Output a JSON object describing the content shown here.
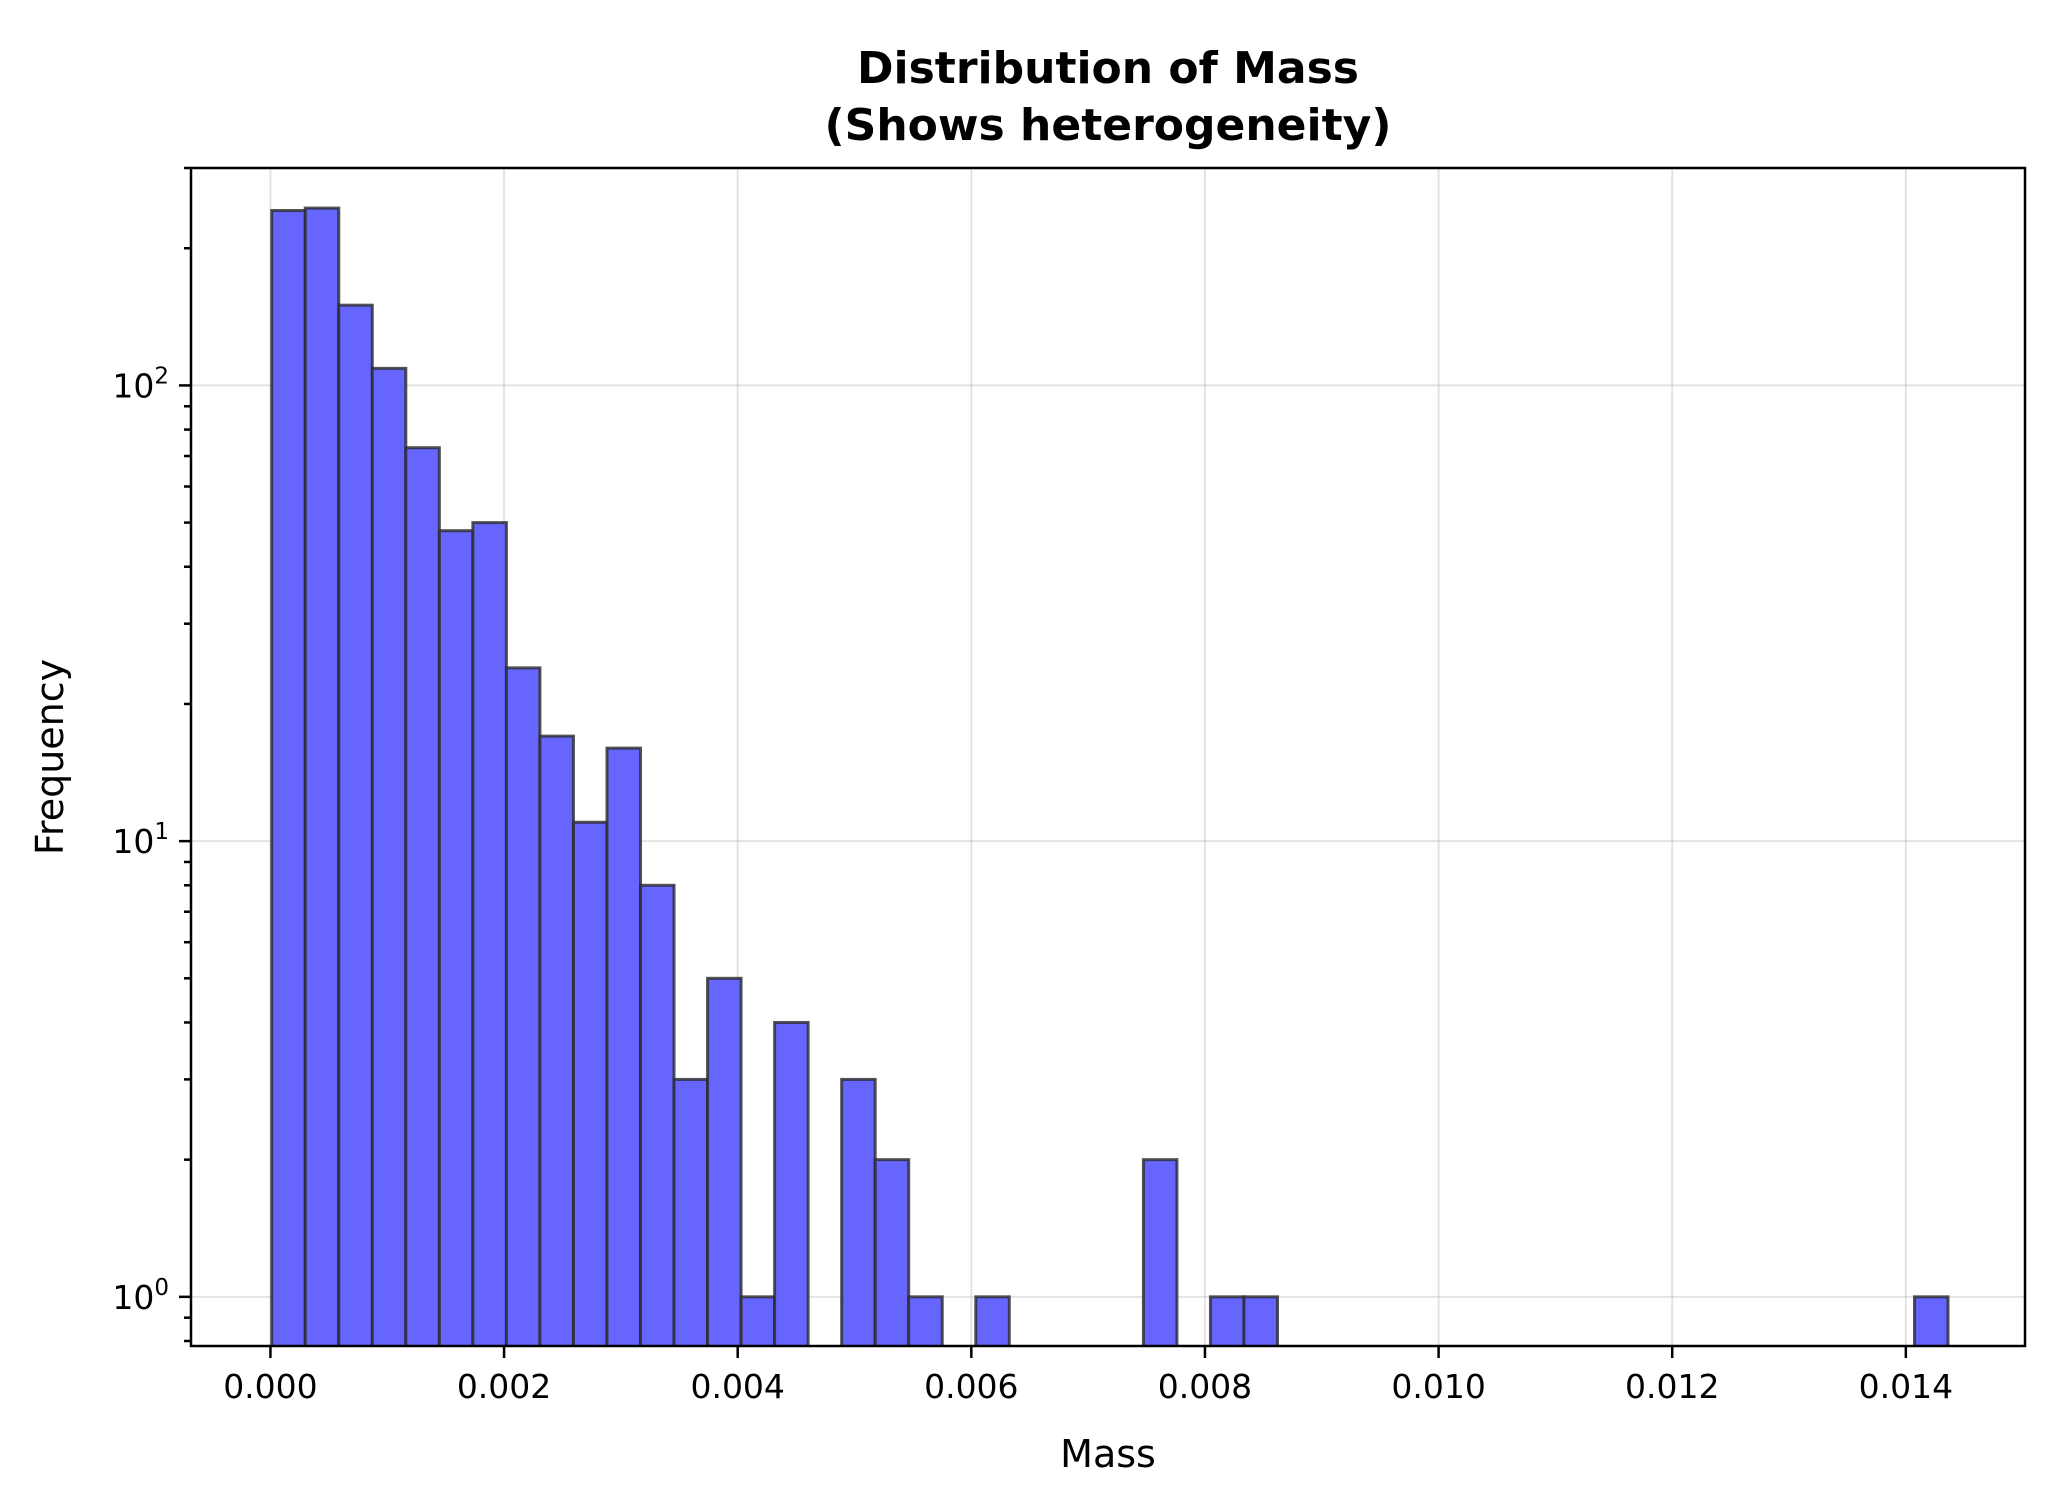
{
  "chart_data": {
    "type": "bar",
    "title_lines": [
      "Distribution of Mass",
      "(Shows heterogeneity)"
    ],
    "xlabel": "Mass",
    "ylabel": "Frequency",
    "y_scale": "log",
    "xlim": [
      -0.00068,
      0.01502
    ],
    "ylim": [
      0.78,
      300
    ],
    "grid": true,
    "bin_width": 0.000287,
    "x_start": 1.1e-05,
    "counts": [
      242,
      245,
      150,
      109,
      73,
      48,
      50,
      24,
      17,
      11,
      16,
      8,
      3,
      5,
      1,
      4,
      0,
      3,
      2,
      1,
      0,
      1,
      0,
      0,
      0,
      0,
      2,
      0,
      1,
      1,
      0,
      0,
      0,
      0,
      0,
      0,
      0,
      0,
      0,
      0,
      0,
      0,
      0,
      0,
      0,
      0,
      0,
      0,
      0,
      1
    ],
    "x_ticks": [
      {
        "value": 0.0,
        "label": "0.000"
      },
      {
        "value": 0.002,
        "label": "0.002"
      },
      {
        "value": 0.004,
        "label": "0.004"
      },
      {
        "value": 0.006,
        "label": "0.006"
      },
      {
        "value": 0.008,
        "label": "0.008"
      },
      {
        "value": 0.01,
        "label": "0.010"
      },
      {
        "value": 0.012,
        "label": "0.012"
      },
      {
        "value": 0.014,
        "label": "0.014"
      }
    ],
    "y_ticks": [
      {
        "value": 1,
        "base": "10",
        "exp": "0"
      },
      {
        "value": 10,
        "base": "10",
        "exp": "1"
      },
      {
        "value": 100,
        "base": "10",
        "exp": "2"
      }
    ],
    "colors": {
      "bar_fill": "#6666ff",
      "bar_edge": "#2a2a2a"
    }
  }
}
